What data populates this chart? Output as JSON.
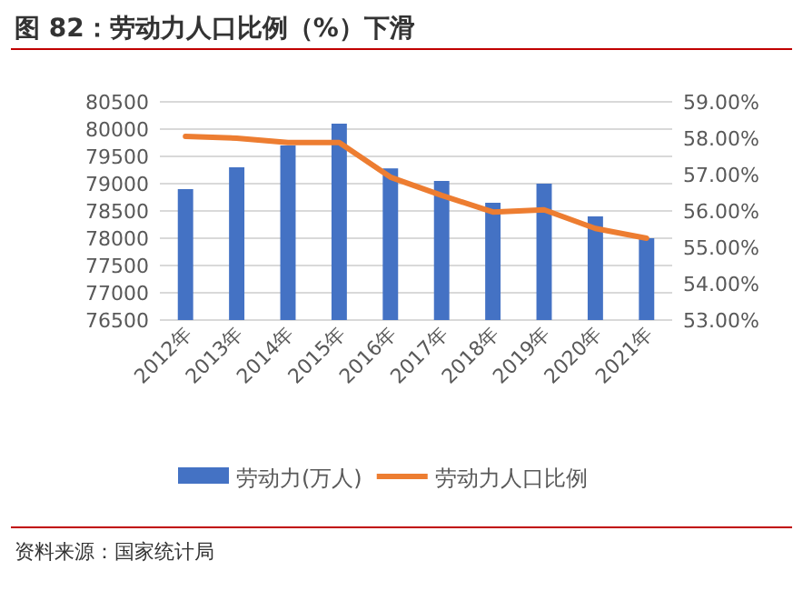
{
  "chart_data": {
    "type": "bar",
    "title": "图 82：劳动力人口比例（%）下滑",
    "categories": [
      "2012年",
      "2013年",
      "2014年",
      "2015年",
      "2016年",
      "2017年",
      "2018年",
      "2019年",
      "2020年",
      "2021年"
    ],
    "series": [
      {
        "name": "劳动力(万人)",
        "color": "#4472c4",
        "values": [
          78900,
          79300,
          79700,
          80100,
          79280,
          79050,
          78650,
          79000,
          78400,
          78000
        ]
      },
      {
        "name": "劳动力人口比例",
        "type": "line",
        "axis": "y2",
        "color": "#ed7d31",
        "values": [
          58.05,
          58.0,
          57.88,
          57.88,
          56.93,
          56.43,
          55.97,
          56.03,
          55.52,
          55.25
        ]
      }
    ],
    "ylim": [
      76500,
      80500
    ],
    "yticks": [
      76500,
      77000,
      77500,
      78000,
      78500,
      79000,
      79500,
      80000,
      80500
    ],
    "y2lim": [
      53,
      59
    ],
    "y2ticks": [
      {
        "value": 53,
        "label": "53.00%"
      },
      {
        "value": 54,
        "label": "54.00%"
      },
      {
        "value": 55,
        "label": "55.00%"
      },
      {
        "value": 56,
        "label": "56.00%"
      },
      {
        "value": 57,
        "label": "57.00%"
      },
      {
        "value": 58,
        "label": "58.00%"
      },
      {
        "value": 59,
        "label": "59.00%"
      }
    ],
    "grid": "y",
    "legend": "bottom",
    "marker": "none",
    "line_style": "solid",
    "annotations": [
      "资料来源：国家统计局"
    ]
  }
}
